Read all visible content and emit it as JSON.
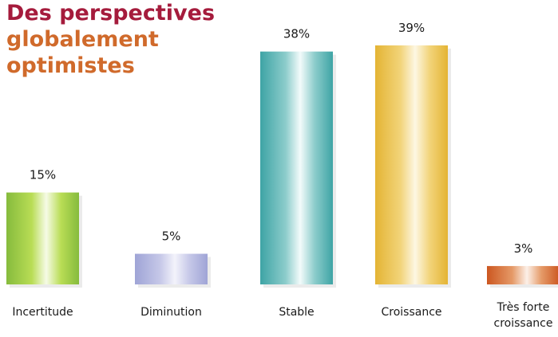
{
  "title": {
    "line1": "Des perspectives",
    "line2": "globalement",
    "line3": "optimistes"
  },
  "chart_data": {
    "type": "bar",
    "categories": [
      "Incertitude",
      "Diminution",
      "Stable",
      "Croissance",
      "Très forte croissance"
    ],
    "category_lines": [
      [
        "Incertitude"
      ],
      [
        "Diminution"
      ],
      [
        "Stable"
      ],
      [
        "Croissance"
      ],
      [
        "Très forte",
        "croissance"
      ]
    ],
    "values": [
      15,
      5,
      38,
      39,
      3
    ],
    "data_labels": [
      "15%",
      "5%",
      "38%",
      "39%",
      "3%"
    ],
    "unit": "%",
    "ylim": [
      0,
      39
    ],
    "grid": false,
    "legend": "none",
    "colors": [
      {
        "dark": "#86bb3d",
        "mid": "#b9dd55",
        "light": "#f6fbe6"
      },
      {
        "dark": "#9fa4d6",
        "mid": "#c6c8e8",
        "light": "#f3f3fb"
      },
      {
        "dark": "#3ea4a5",
        "mid": "#8ccccb",
        "light": "#f3fbfb"
      },
      {
        "dark": "#e4b434",
        "mid": "#f2d47a",
        "light": "#fdf7e3"
      },
      {
        "dark": "#cc5720",
        "mid": "#e59a68",
        "light": "#fcf0e8"
      }
    ]
  }
}
